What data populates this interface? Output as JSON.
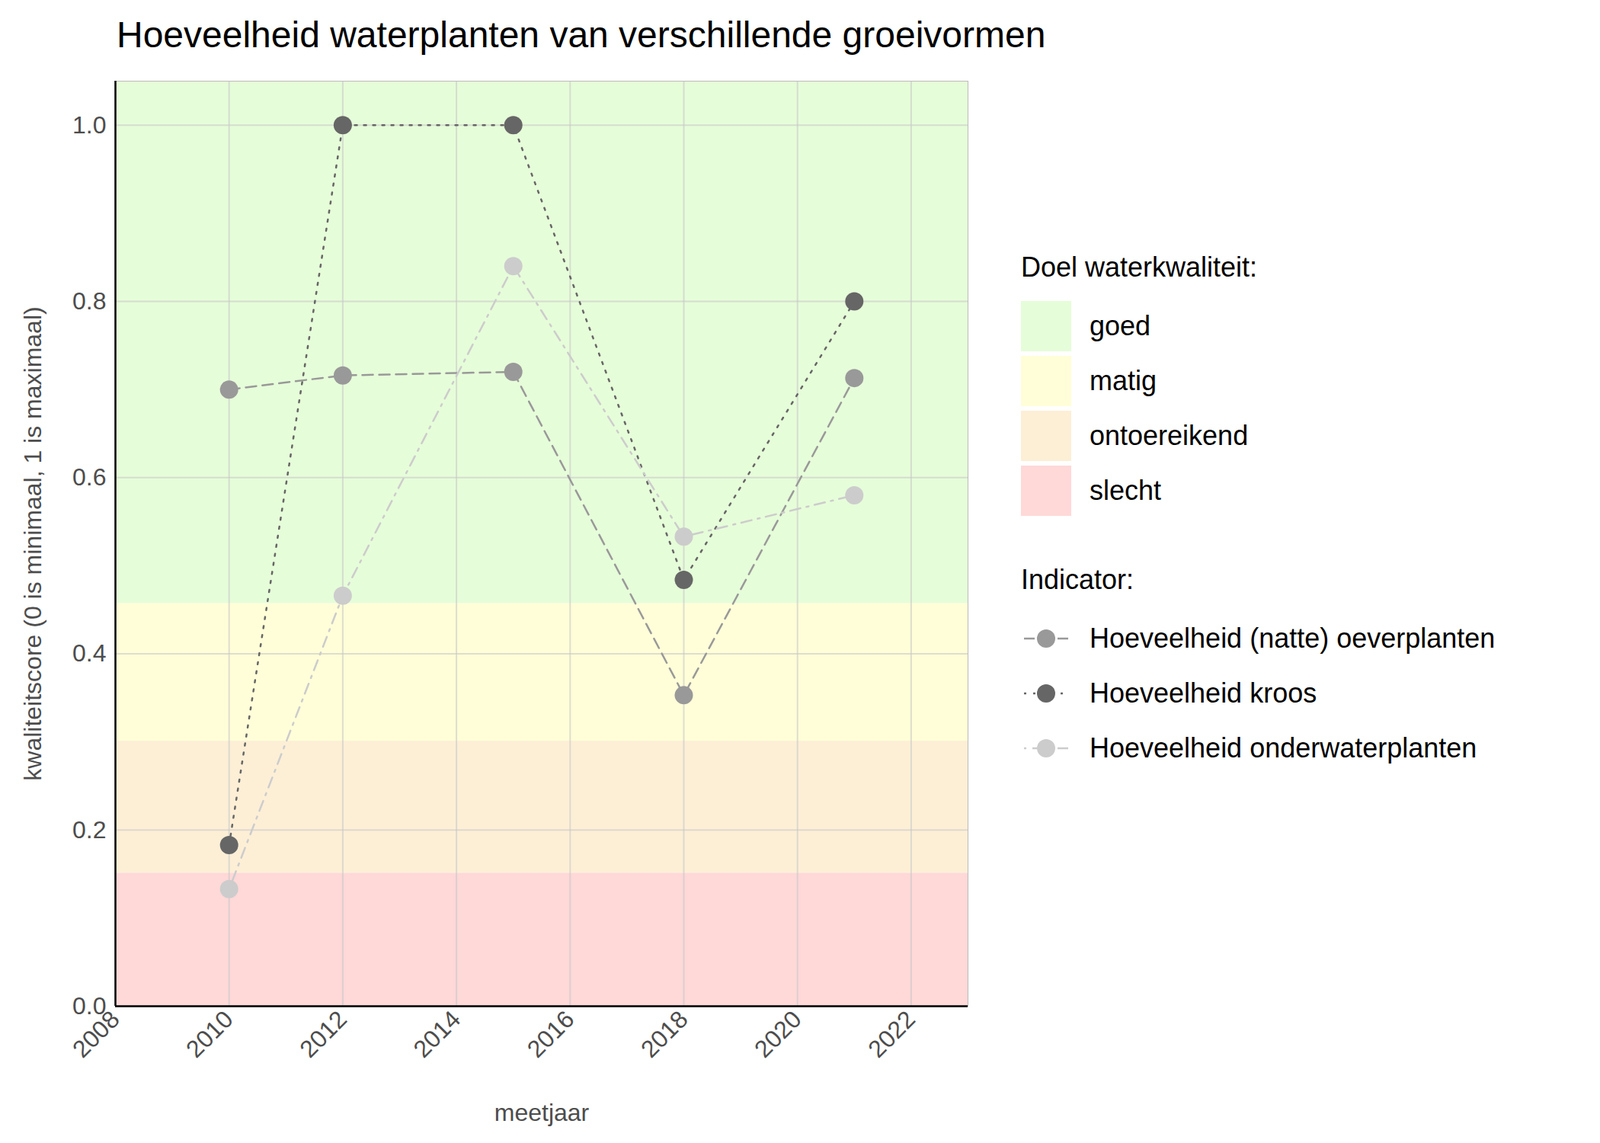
{
  "chart_data": {
    "type": "line",
    "title": "Hoeveelheid waterplanten van verschillende groeivormen",
    "x_label": "meetjaar",
    "y_label": "kwaliteitscore (0 is minimaal, 1 is maximaal)",
    "x": [
      2010,
      2012,
      2015,
      2018,
      2021
    ],
    "xlim": [
      2008,
      2023
    ],
    "xticks": [
      2008,
      2010,
      2012,
      2014,
      2016,
      2018,
      2020,
      2022
    ],
    "ylim": [
      0,
      1.05
    ],
    "yticks": [
      {
        "value": 0,
        "label": "0.0"
      },
      0.2,
      0.4,
      0.6,
      0.8,
      {
        "value": 1,
        "label": "1.0"
      }
    ],
    "grid": true,
    "legend": "right",
    "legend_title": "Indicator:",
    "series": [
      {
        "name": "Hoeveelheid (natte) oeverplanten",
        "color": "#999999",
        "marker": "circle",
        "line_style": "dashed",
        "values": [
          0.7,
          0.716,
          0.72,
          0.353,
          0.713
        ]
      },
      {
        "name": "Hoeveelheid kroos",
        "color": "#666666",
        "marker": "circle",
        "line_style": "dotted",
        "values": [
          0.183,
          1.0,
          1.0,
          0.484,
          0.8
        ]
      },
      {
        "name": "Hoeveelheid onderwaterplanten",
        "color": "#cccccc",
        "marker": "circle",
        "line_style": "dashdot",
        "values": [
          0.133,
          0.466,
          0.84,
          0.533,
          0.58
        ]
      }
    ],
    "bands_title": "Doel waterkwaliteit:",
    "bands": [
      {
        "name": "goed",
        "from": 0.457,
        "to": 1.05,
        "color": "#e6fdd9"
      },
      {
        "name": "matig",
        "from": 0.301,
        "to": 0.457,
        "color": "#fffed8"
      },
      {
        "name": "ontoereikend",
        "from": 0.151,
        "to": 0.301,
        "color": "#fdefd6"
      },
      {
        "name": "slecht",
        "from": 0,
        "to": 0.151,
        "color": "#ffd8d8"
      }
    ]
  }
}
